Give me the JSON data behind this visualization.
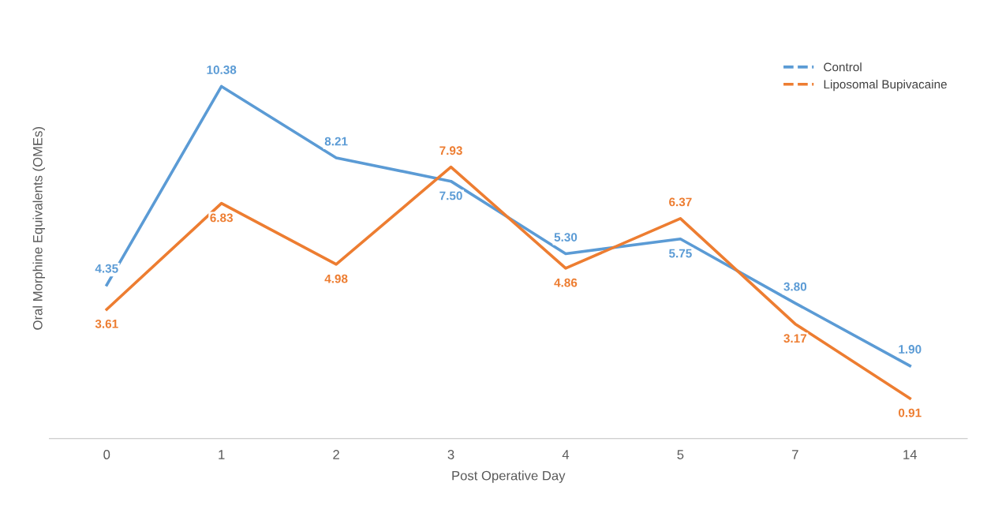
{
  "chart_data": {
    "type": "line",
    "xlabel": "Post Operative Day",
    "ylabel": "Oral Morphine Equivalents (OMEs)",
    "categories": [
      "0",
      "1",
      "2",
      "3",
      "4",
      "5",
      "7",
      "14"
    ],
    "series": [
      {
        "name": "Control",
        "color": "#5b9bd5",
        "values": [
          4.35,
          10.38,
          8.21,
          7.5,
          5.3,
          5.75,
          3.8,
          1.9
        ],
        "value_labels": [
          "4.35",
          "10.38",
          "8.21",
          "7.50",
          "5.30",
          "5.75",
          "3.80",
          "1.90"
        ]
      },
      {
        "name": "Liposomal Bupivacaine",
        "color": "#ed7d31",
        "values": [
          3.61,
          6.83,
          4.98,
          7.93,
          4.86,
          6.37,
          3.17,
          0.91
        ],
        "value_labels": [
          "3.61",
          "6.83",
          "4.98",
          "7.93",
          "4.86",
          "6.37",
          "3.17",
          "0.91"
        ]
      }
    ],
    "relative": false,
    "legend": "top right",
    "grid": false,
    "marker": "none",
    "line_style": "solid"
  }
}
